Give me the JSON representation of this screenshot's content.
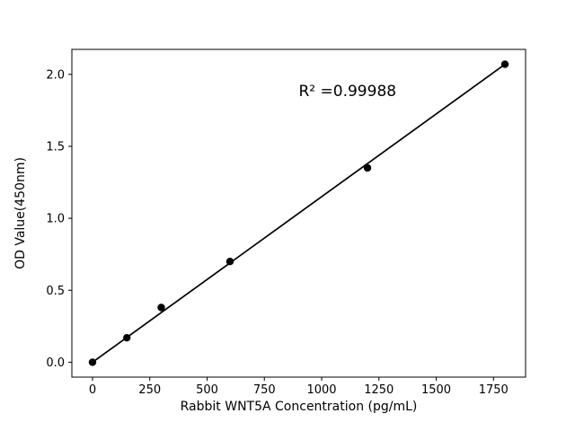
{
  "figure": {
    "background": "#ffffff"
  },
  "chart_data": {
    "type": "scatter",
    "title": "",
    "xlabel": "Rabbit WNT5A Concentration (pg/mL)",
    "ylabel": "OD Value(450nm)",
    "x": [
      0,
      150,
      300,
      600,
      1200,
      1800
    ],
    "y": [
      0.0,
      0.17,
      0.38,
      0.7,
      1.35,
      2.07
    ],
    "fit_line": {
      "x": [
        0,
        1800
      ],
      "y": [
        0.0,
        2.07
      ]
    },
    "annotation": {
      "text": "R² =0.99988",
      "x": 900,
      "y": 1.85
    },
    "xticks": [
      0,
      250,
      500,
      750,
      1000,
      1250,
      1500,
      1750
    ],
    "yticks": [
      0.0,
      0.5,
      1.0,
      1.5,
      2.0
    ],
    "xlim": [
      -90,
      1890
    ],
    "ylim": [
      -0.1035,
      2.1735
    ],
    "grid": false,
    "legend": "none",
    "marker_color": "#000000",
    "line_color": "#000000",
    "axis_color": "#000000"
  }
}
